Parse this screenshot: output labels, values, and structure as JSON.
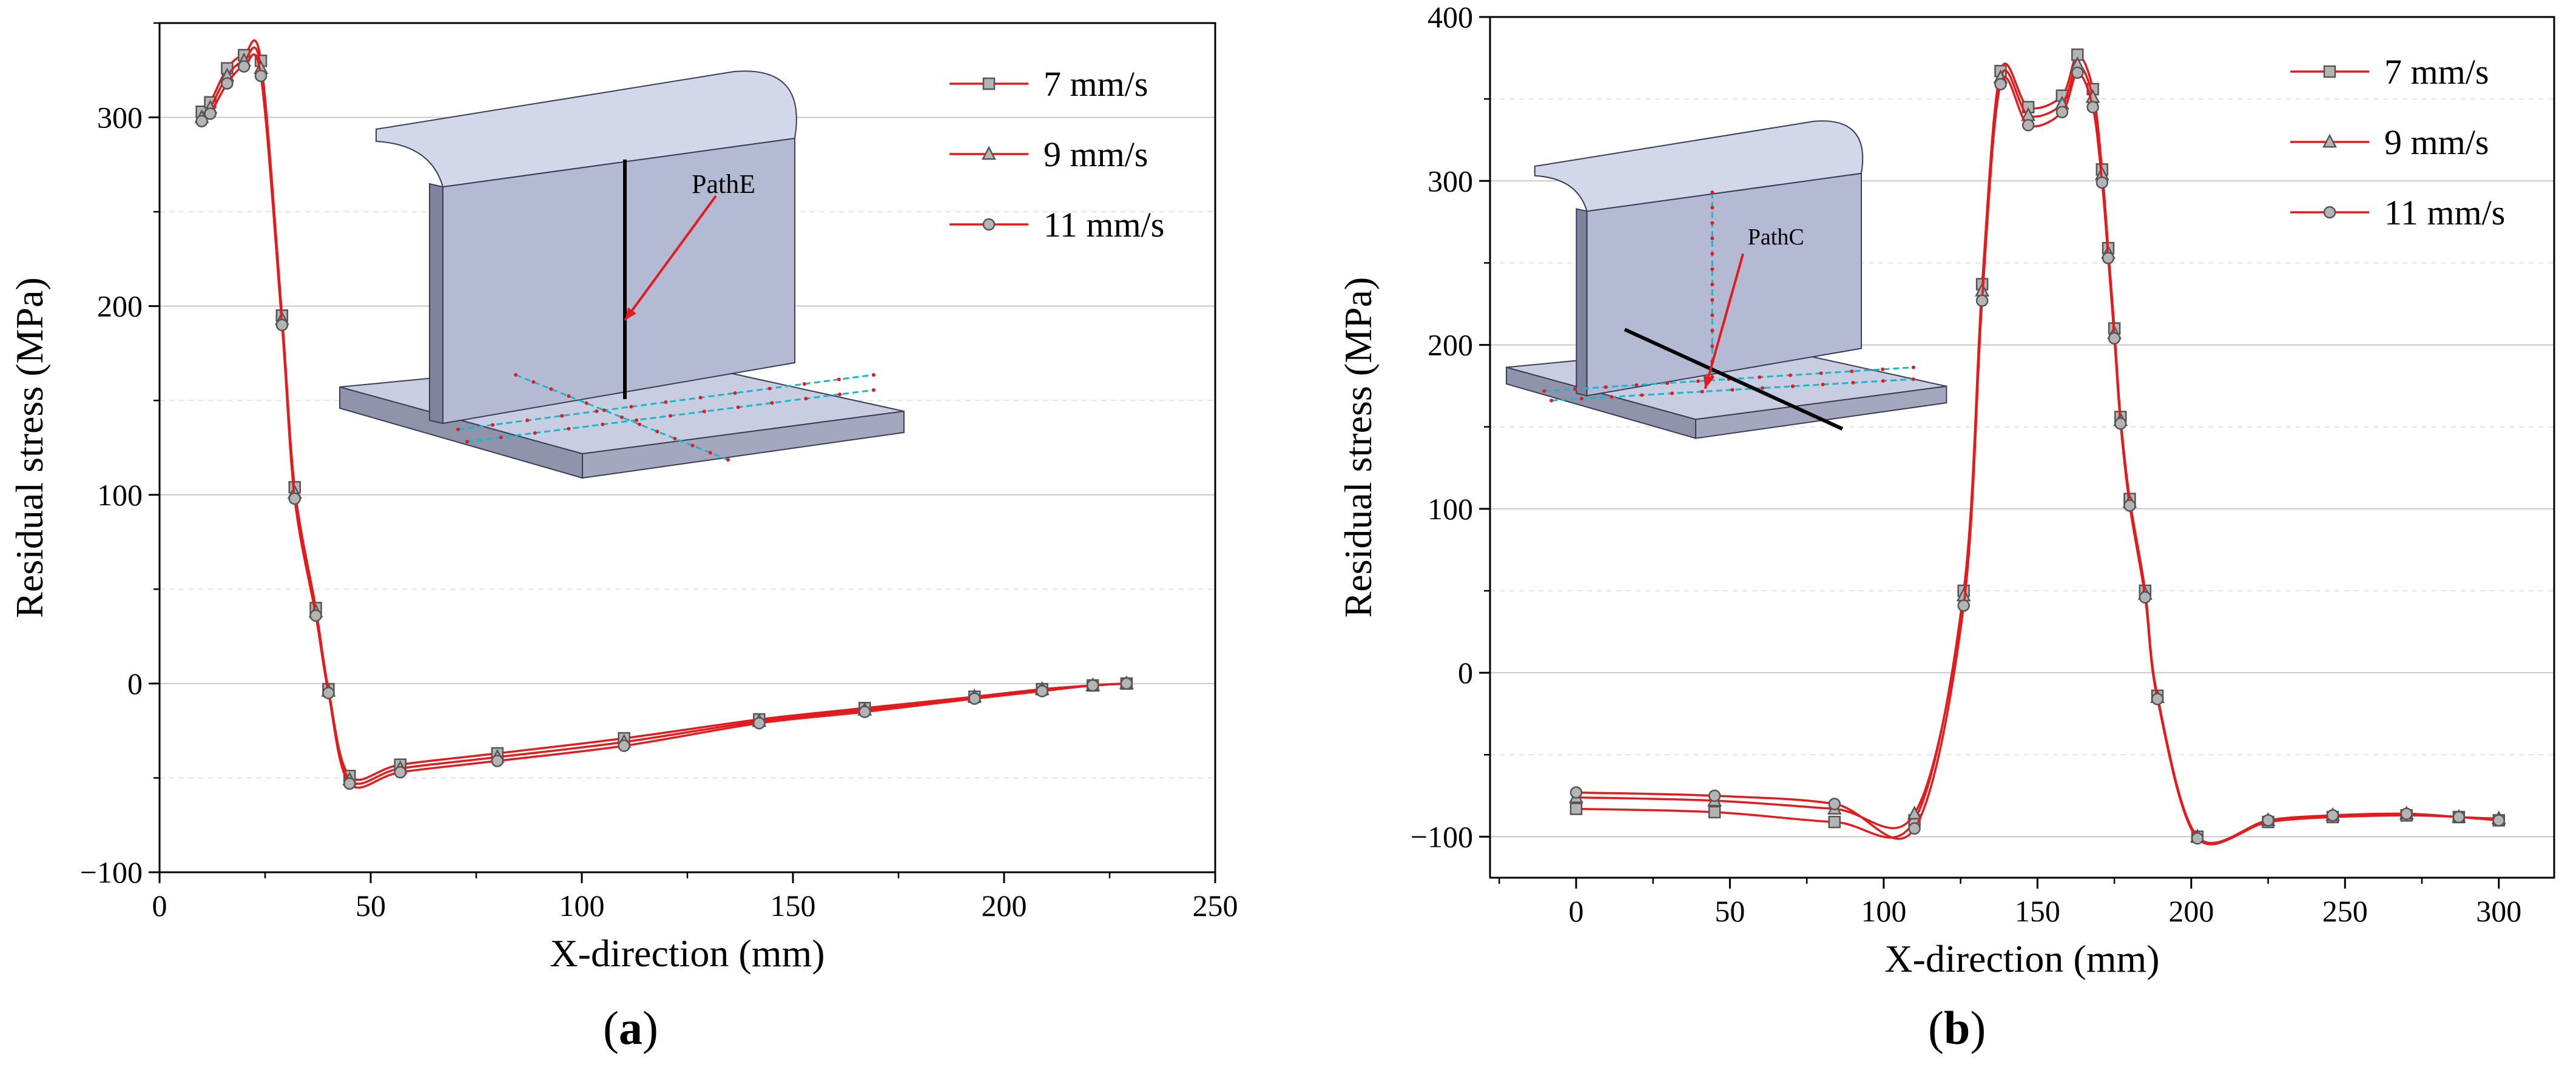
{
  "figure": {
    "panel_a_letter": "a",
    "panel_b_letter": "b",
    "panel_open": "(",
    "panel_close": ")"
  },
  "colors": {
    "series_line": "#e41a1c",
    "marker_fill": "#b4b4b4",
    "marker_stroke": "#555555",
    "gridline": "#c8c8c8",
    "axis": "#000000",
    "inset_body": "#c8cde2",
    "inset_edge": "#3a3d55",
    "inset_path": "#1ab7c8"
  },
  "chart_data": [
    {
      "id": "a",
      "type": "line",
      "title": "",
      "xlabel": "X-direction (mm)",
      "ylabel": "Residual stress (MPa)",
      "xlim": [
        0,
        250
      ],
      "ylim": [
        -100,
        350
      ],
      "xticks": [
        0,
        50,
        100,
        150,
        200,
        250
      ],
      "xtick_labels": [
        "0",
        "50",
        "100",
        "150",
        "200",
        "250"
      ],
      "yticks": [
        -100,
        0,
        100,
        200,
        300
      ],
      "ytick_labels": [
        "−100",
        "0",
        "100",
        "200",
        "300"
      ],
      "grid_values": [
        0,
        100,
        200,
        300
      ],
      "legend_position": "top-right",
      "inset_label": "PathE",
      "series": [
        {
          "name": "7 mm/s",
          "marker": "square",
          "x": [
            10,
            12,
            16,
            20,
            24,
            29,
            32,
            37,
            40,
            45,
            57,
            80,
            110,
            142,
            167,
            193,
            209,
            221,
            229
          ],
          "y": [
            303,
            308,
            326,
            333,
            330,
            195,
            104,
            40,
            -3,
            -49,
            -43,
            -37,
            -29,
            -19,
            -13,
            -7,
            -3,
            -1,
            0
          ]
        },
        {
          "name": "9 mm/s",
          "marker": "triangle",
          "x": [
            10,
            12,
            16,
            20,
            24,
            29,
            32,
            37,
            40,
            45,
            57,
            80,
            110,
            142,
            167,
            193,
            209,
            221,
            229
          ],
          "y": [
            300,
            305,
            322,
            330,
            326,
            193,
            101,
            38,
            -4,
            -51,
            -45,
            -39,
            -31,
            -20,
            -14,
            -7,
            -3,
            -1,
            0
          ]
        },
        {
          "name": "11 mm/s",
          "marker": "circle",
          "x": [
            10,
            12,
            16,
            20,
            24,
            29,
            32,
            37,
            40,
            45,
            57,
            80,
            110,
            142,
            167,
            193,
            209,
            221,
            229
          ],
          "y": [
            298,
            302,
            318,
            327,
            322,
            190,
            98,
            36,
            -5,
            -53,
            -47,
            -41,
            -33,
            -21,
            -15,
            -8,
            -4,
            -1,
            0
          ]
        }
      ]
    },
    {
      "id": "b",
      "type": "line",
      "title": "",
      "xlabel": "X-direction (mm)",
      "ylabel": "Residual stress (MPa)",
      "xlim": [
        -28,
        318
      ],
      "ylim": [
        -125,
        400
      ],
      "xticks": [
        0,
        50,
        100,
        150,
        200,
        250,
        300
      ],
      "xtick_labels": [
        "0",
        "50",
        "100",
        "150",
        "200",
        "250",
        "300"
      ],
      "yticks": [
        -100,
        0,
        100,
        200,
        300,
        400
      ],
      "ytick_labels": [
        "−100",
        "0",
        "100",
        "200",
        "300",
        "400"
      ],
      "grid_values": [
        -100,
        0,
        100,
        200,
        300
      ],
      "legend_position": "top-right",
      "inset_label": "PathC",
      "series": [
        {
          "name": "7 mm/s",
          "marker": "square",
          "x": [
            0,
            45,
            84,
            110,
            126,
            132,
            138,
            147,
            158,
            163,
            168,
            171,
            173,
            175,
            177,
            180,
            185,
            189,
            202,
            225,
            246,
            270,
            287,
            300
          ],
          "y": [
            -83,
            -85,
            -91,
            -90,
            50,
            237,
            367,
            345,
            352,
            377,
            356,
            307,
            259,
            210,
            156,
            106,
            50,
            -14,
            -100,
            -91,
            -88,
            -87,
            -88,
            -90
          ]
        },
        {
          "name": "9 mm/s",
          "marker": "triangle",
          "x": [
            0,
            45,
            84,
            110,
            126,
            132,
            138,
            147,
            158,
            163,
            168,
            171,
            173,
            175,
            177,
            180,
            185,
            189,
            202,
            225,
            246,
            270,
            287,
            300
          ],
          "y": [
            -76,
            -78,
            -83,
            -86,
            47,
            233,
            363,
            340,
            347,
            371,
            351,
            304,
            256,
            207,
            154,
            104,
            48,
            -15,
            -100,
            -90,
            -87,
            -86,
            -88,
            -89
          ]
        },
        {
          "name": "11 mm/s",
          "marker": "circle",
          "x": [
            0,
            45,
            84,
            110,
            126,
            132,
            138,
            147,
            158,
            163,
            168,
            171,
            173,
            175,
            177,
            180,
            185,
            189,
            202,
            225,
            246,
            270,
            287,
            300
          ],
          "y": [
            -73,
            -75,
            -80,
            -95,
            41,
            227,
            359,
            334,
            342,
            366,
            345,
            299,
            253,
            204,
            152,
            102,
            46,
            -16,
            -101,
            -90,
            -87,
            -86,
            -88,
            -90
          ]
        }
      ]
    }
  ]
}
